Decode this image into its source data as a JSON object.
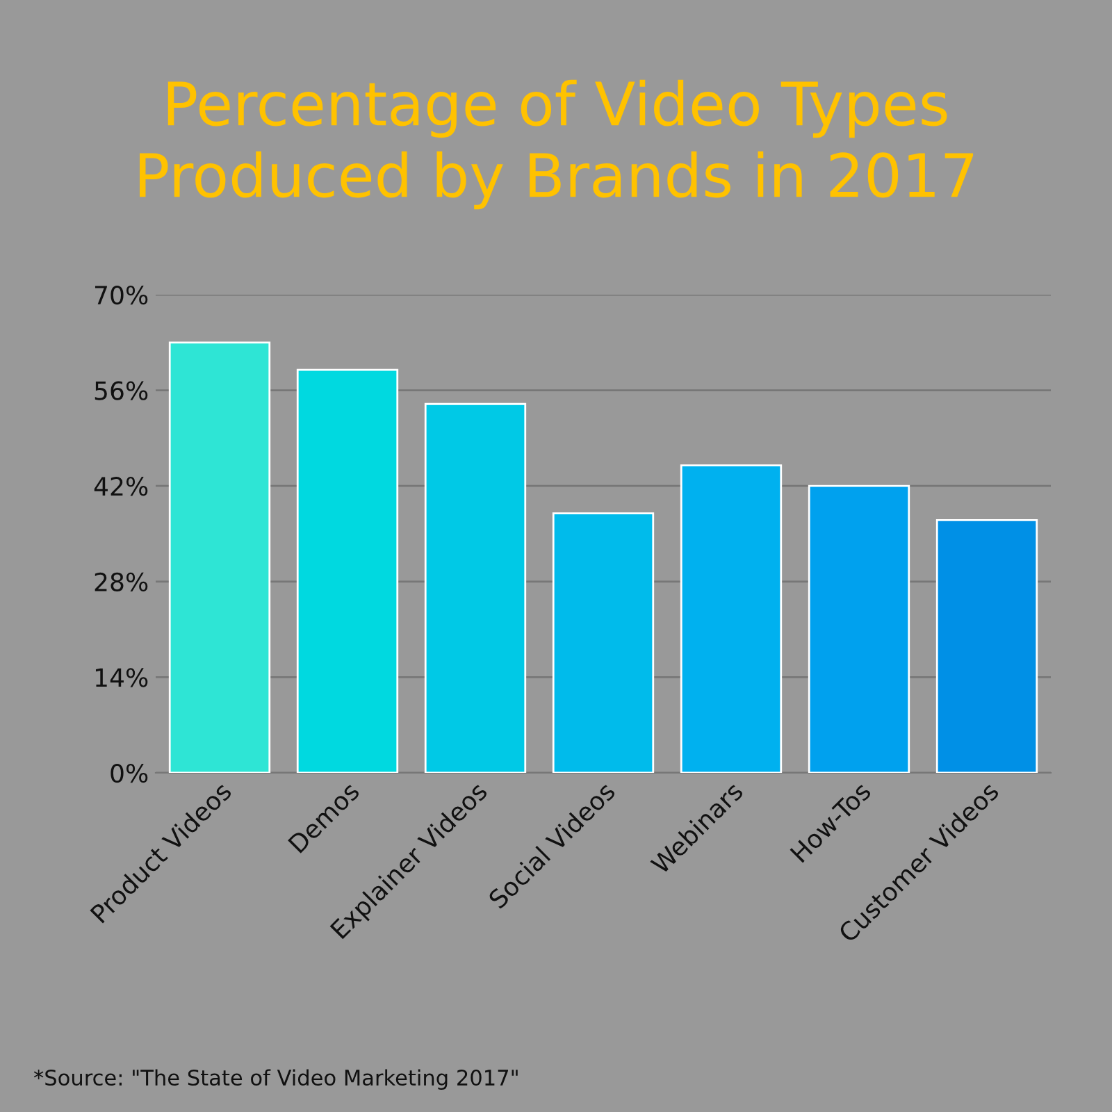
{
  "chart_data": {
    "type": "bar",
    "title": "Percentage of Video Types\nProduced by Brands in 2017",
    "categories": [
      "Product Videos",
      "Demos",
      "Explainer Videos",
      "Social Videos",
      "Webinars",
      "How-Tos",
      "Customer Videos"
    ],
    "values": [
      63,
      59,
      54,
      38,
      45,
      42,
      37
    ],
    "colors": [
      "#2ee5d5",
      "#00d9e0",
      "#00c9e6",
      "#00bbeb",
      "#00b1ef",
      "#00a1ee",
      "#0090e6"
    ],
    "ylim": [
      0,
      70
    ],
    "yticks": [
      {
        "value": 0,
        "label": "0%"
      },
      {
        "value": 14,
        "label": "14%"
      },
      {
        "value": 28,
        "label": "28%"
      },
      {
        "value": 42,
        "label": "42%"
      },
      {
        "value": 56,
        "label": "56%"
      },
      {
        "value": 70,
        "label": "70%"
      }
    ],
    "grid": "y",
    "annotations": [
      "*Source: \"The State of Video Marketing 2017\""
    ]
  }
}
